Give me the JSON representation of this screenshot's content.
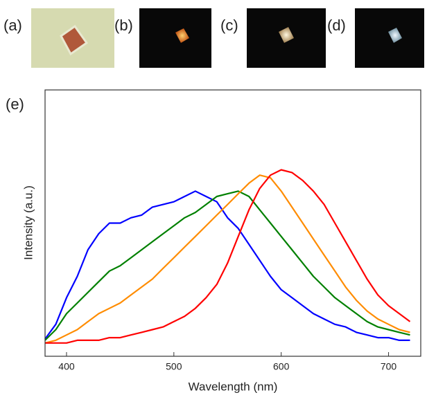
{
  "panels": [
    "(a)",
    "(b)",
    "(c)",
    "(d)"
  ],
  "chart_data": {
    "type": "line",
    "panel_label": "(e)",
    "x_label": "Wavelength (nm)",
    "y_label": "Intensity (a.u.)",
    "x": [
      380,
      390,
      400,
      410,
      420,
      430,
      440,
      450,
      460,
      470,
      480,
      490,
      500,
      510,
      520,
      530,
      540,
      550,
      560,
      570,
      580,
      590,
      600,
      610,
      620,
      630,
      640,
      650,
      660,
      670,
      680,
      690,
      700,
      710,
      720
    ],
    "series": [
      {
        "color": "#0000ff",
        "values": [
          0.065,
          0.12,
          0.22,
          0.3,
          0.4,
          0.46,
          0.5,
          0.5,
          0.52,
          0.53,
          0.56,
          0.57,
          0.58,
          0.6,
          0.62,
          0.6,
          0.58,
          0.52,
          0.48,
          0.42,
          0.36,
          0.3,
          0.25,
          0.22,
          0.19,
          0.16,
          0.14,
          0.12,
          0.11,
          0.09,
          0.08,
          0.07,
          0.07,
          0.06,
          0.06
        ]
      },
      {
        "color": "#008000",
        "values": [
          0.06,
          0.1,
          0.16,
          0.2,
          0.24,
          0.28,
          0.32,
          0.34,
          0.37,
          0.4,
          0.43,
          0.46,
          0.49,
          0.52,
          0.54,
          0.57,
          0.6,
          0.61,
          0.62,
          0.6,
          0.55,
          0.5,
          0.45,
          0.4,
          0.35,
          0.3,
          0.26,
          0.22,
          0.19,
          0.16,
          0.13,
          0.11,
          0.1,
          0.09,
          0.08
        ]
      },
      {
        "color": "#ff8c00",
        "values": [
          0.05,
          0.06,
          0.08,
          0.1,
          0.13,
          0.16,
          0.18,
          0.2,
          0.23,
          0.26,
          0.29,
          0.33,
          0.37,
          0.41,
          0.45,
          0.49,
          0.53,
          0.57,
          0.61,
          0.65,
          0.68,
          0.67,
          0.62,
          0.56,
          0.5,
          0.44,
          0.38,
          0.32,
          0.26,
          0.21,
          0.17,
          0.14,
          0.12,
          0.1,
          0.09
        ]
      },
      {
        "color": "#ff0000",
        "values": [
          0.05,
          0.05,
          0.05,
          0.06,
          0.06,
          0.06,
          0.07,
          0.07,
          0.08,
          0.09,
          0.1,
          0.11,
          0.13,
          0.15,
          0.18,
          0.22,
          0.27,
          0.35,
          0.45,
          0.55,
          0.63,
          0.68,
          0.7,
          0.69,
          0.66,
          0.62,
          0.57,
          0.5,
          0.43,
          0.36,
          0.29,
          0.23,
          0.19,
          0.16,
          0.13
        ]
      }
    ],
    "xlim": [
      380,
      730
    ],
    "xticks": [
      400,
      500,
      600,
      700
    ],
    "ylim": [
      0,
      1
    ]
  }
}
